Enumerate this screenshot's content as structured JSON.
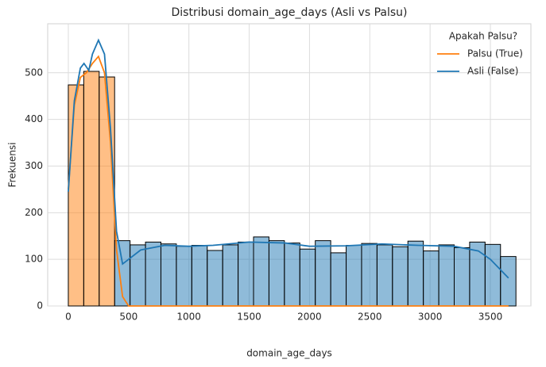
{
  "chart_data": {
    "type": "histogram",
    "title": "Distribusi domain_age_days (Asli vs Palsu)",
    "x_label": "domain_age_days",
    "y_label": "Frekuensi",
    "bins": [
      0,
      128,
      256,
      384,
      512,
      640,
      768,
      896,
      1024,
      1152,
      1280,
      1408,
      1536,
      1664,
      1792,
      1920,
      2048,
      2176,
      2304,
      2432,
      2560,
      2688,
      2816,
      2944,
      3072,
      3200,
      3328,
      3456,
      3584,
      3712
    ],
    "series": [
      {
        "name": "Palsu (True)",
        "color": "#ff7f0e",
        "values": [
          474,
          503,
          491,
          0,
          0,
          0,
          0,
          0,
          0,
          0,
          0,
          0,
          0,
          0,
          0,
          0,
          0,
          0,
          0,
          0,
          0,
          0,
          0,
          0,
          0,
          0,
          0,
          0,
          0
        ],
        "kde_x": [
          0,
          50,
          100,
          150,
          200,
          250,
          300,
          350,
          400,
          450,
          500,
          1000,
          2000,
          3000,
          3650
        ],
        "kde_values": [
          250,
          430,
          490,
          500,
          520,
          535,
          500,
          350,
          120,
          20,
          0,
          0,
          0,
          0,
          0
        ]
      },
      {
        "name": "Asli (False)",
        "color": "#1f77b4",
        "values": [
          0,
          0,
          0,
          140,
          131,
          137,
          133,
          128,
          130,
          119,
          131,
          137,
          148,
          140,
          135,
          122,
          140,
          114,
          130,
          134,
          131,
          127,
          139,
          118,
          131,
          125,
          137,
          132,
          106
        ],
        "kde_x": [
          0,
          50,
          100,
          130,
          170,
          200,
          250,
          300,
          350,
          400,
          450,
          500,
          600,
          800,
          1000,
          1200,
          1500,
          1800,
          2000,
          2300,
          2600,
          2900,
          3200,
          3400,
          3500,
          3650
        ],
        "kde_values": [
          245,
          440,
          510,
          520,
          505,
          540,
          570,
          540,
          380,
          160,
          90,
          100,
          120,
          130,
          128,
          130,
          137,
          135,
          128,
          129,
          133,
          130,
          128,
          118,
          100,
          60
        ]
      }
    ],
    "xlim": [
      -171,
      3836
    ],
    "ylim": [
      0,
      605
    ],
    "xticks": [
      0,
      500,
      1000,
      1500,
      2000,
      2500,
      3000,
      3500
    ],
    "yticks": [
      0,
      100,
      200,
      300,
      400,
      500
    ],
    "grid": true,
    "legend_title": "Apakah Palsu?",
    "legend": "upper right"
  }
}
